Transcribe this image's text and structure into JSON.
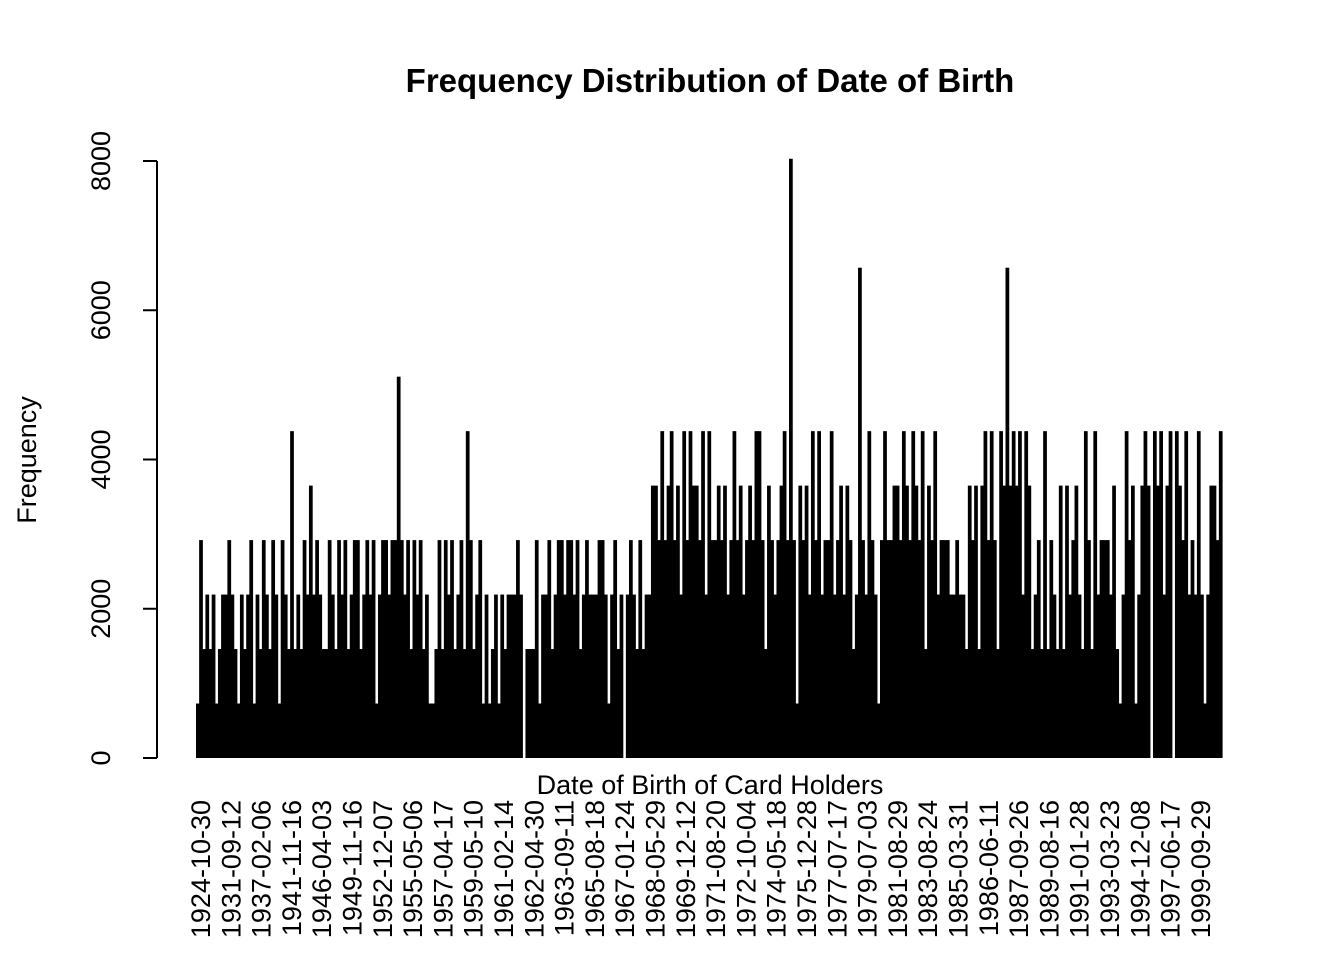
{
  "chart_data": {
    "type": "bar",
    "title": "Frequency Distribution of Date of Birth",
    "xlabel": "Date of Birth of Card Holders",
    "ylabel": "Frequency",
    "ylim": [
      0,
      8000
    ],
    "yticks": [
      0,
      2000,
      4000,
      6000,
      8000
    ],
    "grid": false,
    "legend": "none",
    "bar_color": "#000000",
    "x_tick_labels": [
      "1924-10-30",
      "1931-09-12",
      "1937-02-06",
      "1941-11-16",
      "1946-04-03",
      "1949-11-16",
      "1952-12-07",
      "1955-05-06",
      "1957-04-17",
      "1959-05-10",
      "1961-02-14",
      "1962-04-30",
      "1963-09-11",
      "1965-08-18",
      "1967-01-24",
      "1968-05-29",
      "1969-12-12",
      "1971-08-20",
      "1972-10-04",
      "1974-05-18",
      "1975-12-28",
      "1977-07-17",
      "1979-07-03",
      "1981-08-29",
      "1983-08-24",
      "1985-03-31",
      "1986-06-11",
      "1987-09-26",
      "1989-08-16",
      "1991-01-28",
      "1993-03-23",
      "1994-12-08",
      "1997-06-17",
      "1999-09-29"
    ],
    "series": [
      {
        "values": [
          730,
          2920,
          1460,
          2190,
          1460,
          2190,
          730,
          1460,
          2190,
          2190,
          2920,
          2190,
          1460,
          730,
          2190,
          1460,
          2190,
          2920,
          730,
          2190,
          1460,
          2920,
          2190,
          1460,
          2920,
          2190,
          730,
          2920,
          2190,
          1460,
          4380,
          1460,
          2190,
          1460,
          2920,
          2190,
          3650,
          2190,
          2920,
          2190,
          1460,
          1460,
          2920,
          2190,
          1460,
          2920,
          2190,
          2920,
          1460,
          2190,
          2920,
          2920,
          1460,
          2190,
          2920,
          2190,
          2920,
          730,
          2190,
          2920,
          2920,
          2190,
          2920,
          2920,
          5110,
          2920,
          2190,
          2920,
          1460,
          2920,
          2190,
          2920,
          1460,
          2190,
          730,
          730,
          1460,
          2920,
          1460,
          2920,
          2190,
          2920,
          1460,
          2190,
          2920,
          1460,
          4380,
          2920,
          1460,
          2190,
          2920,
          730,
          2190,
          730,
          1460,
          2190,
          730,
          2190,
          1460,
          2190,
          2190,
          2190,
          2920,
          2190,
          0,
          1460,
          1460,
          1460,
          2920,
          730,
          2190,
          2190,
          2920,
          1460,
          2190,
          2920,
          2920,
          2190,
          2920,
          2920,
          2190,
          2920,
          1460,
          2190,
          2920,
          2190,
          2190,
          2190,
          2920,
          2920,
          2190,
          730,
          2190,
          2920,
          1460,
          2190,
          0,
          2190,
          2920,
          2190,
          1460,
          2920,
          1460,
          2190,
          2190,
          3650,
          3650,
          2920,
          4380,
          2920,
          3650,
          4380,
          2920,
          3650,
          2190,
          4380,
          2920,
          4380,
          3650,
          3650,
          2920,
          4380,
          2190,
          4380,
          2920,
          2920,
          3650,
          2920,
          3650,
          2190,
          2920,
          4380,
          2920,
          3650,
          2190,
          2920,
          3650,
          2920,
          4380,
          4380,
          2920,
          1460,
          3650,
          2920,
          2190,
          2920,
          3650,
          4380,
          2920,
          8030,
          2920,
          730,
          3650,
          2920,
          3650,
          2190,
          4380,
          2920,
          4380,
          2190,
          2920,
          2920,
          4380,
          2190,
          2920,
          3650,
          2190,
          3650,
          2920,
          1460,
          2190,
          6570,
          2920,
          2190,
          4380,
          2920,
          2190,
          730,
          2920,
          4380,
          2920,
          2920,
          3650,
          3650,
          2920,
          4380,
          3650,
          2920,
          4380,
          3650,
          2920,
          4380,
          1460,
          3650,
          2920,
          4380,
          2190,
          2920,
          2920,
          2920,
          2190,
          2190,
          2920,
          2190,
          2190,
          1460,
          3650,
          2920,
          3650,
          1460,
          3650,
          4380,
          2920,
          4380,
          2920,
          1460,
          4380,
          3650,
          6570,
          3650,
          4380,
          3650,
          4380,
          2190,
          4380,
          3650,
          1460,
          2190,
          2920,
          1460,
          4380,
          1460,
          2920,
          2190,
          1460,
          3650,
          1460,
          3650,
          2190,
          2920,
          3650,
          2190,
          1460,
          4380,
          2920,
          1460,
          4380,
          2190,
          2920,
          2920,
          2920,
          2190,
          3650,
          1460,
          730,
          2190,
          4380,
          2920,
          3650,
          730,
          2190,
          3650,
          4380,
          3650,
          0,
          4380,
          3650,
          4380,
          2190,
          3650,
          4380,
          0,
          4380,
          3650,
          2920,
          4380,
          2190,
          2920,
          2190,
          4380,
          2190,
          730,
          2190,
          3650,
          3650,
          2920,
          4380
        ]
      }
    ]
  }
}
